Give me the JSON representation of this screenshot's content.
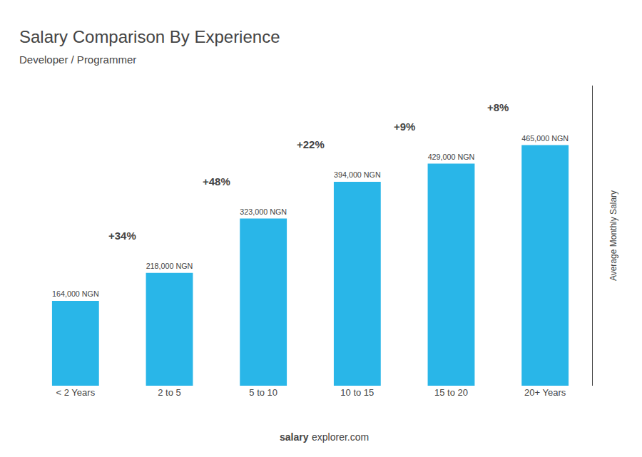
{
  "chart_data": {
    "type": "bar",
    "title": "Salary Comparison By Experience",
    "subtitle": "Developer / Programmer",
    "ylabel": "Average Monthly Salary",
    "categories": [
      "< 2 Years",
      "2 to 5",
      "5 to 10",
      "10 to 15",
      "15 to 20",
      "20+ Years"
    ],
    "values": [
      164000,
      218000,
      323000,
      394000,
      429000,
      465000
    ],
    "value_labels": [
      "164,000 NGN",
      "218,000 NGN",
      "323,000 NGN",
      "394,000 NGN",
      "429,000 NGN",
      "465,000 NGN"
    ],
    "data_labels": true,
    "color": "#29b6e8",
    "ylim": [
      0,
      580000
    ],
    "yticks": [],
    "tick_labels": "x",
    "grid": false,
    "annotations": [
      "+34%",
      "+48%",
      "+22%",
      "+9%",
      "+8%"
    ],
    "footer": [
      "salary",
      "explorer.com"
    ]
  }
}
